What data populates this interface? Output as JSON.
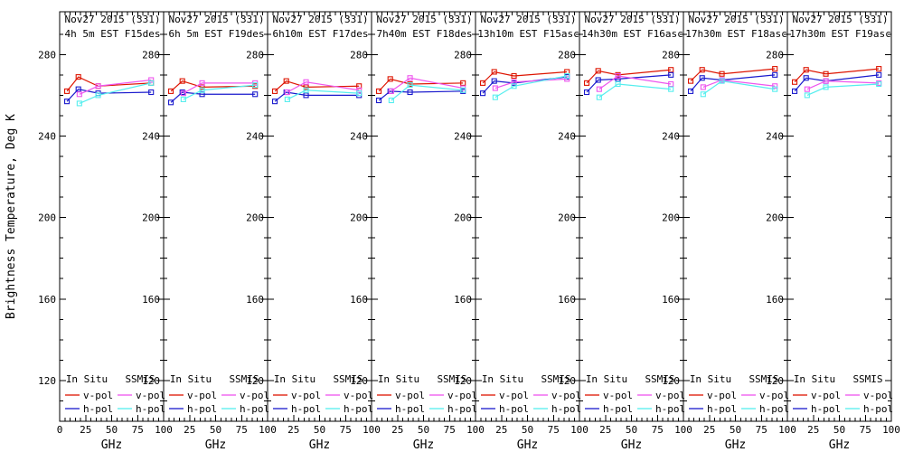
{
  "figure": {
    "ylabel": "Brightness Temperature, Deg K",
    "xlabel": "GHz",
    "legend": {
      "col1_header": "In Situ",
      "col2_header": "SSMIS",
      "vpol_label": "v-pol",
      "hpol_label": "h-pol"
    },
    "colors": {
      "in_situ_v": "#dd1400",
      "in_situ_h": "#1a1acd",
      "ssmis_v": "#ee55ee",
      "ssmis_h": "#55eeee",
      "axis": "#000000",
      "background": "#ffffff"
    }
  },
  "chart_data": {
    "type": "line",
    "xlabel": "GHz",
    "ylabel": "Brightness Temperature, Deg K",
    "xlim": [
      0,
      100
    ],
    "ylim": [
      100,
      301
    ],
    "xticks": [
      0,
      25,
      50,
      75,
      100
    ],
    "yticks": [
      120,
      160,
      200,
      240,
      280
    ],
    "x_minor_step": 5,
    "y_minor_step": 10,
    "grid": false,
    "legend_position": "bottom-inside-each-panel",
    "in_situ_freqs_ghz": [
      7,
      18,
      37,
      88
    ],
    "ssmis_freqs_ghz": [
      19,
      37,
      88
    ],
    "panels": [
      {
        "title": "Nov27 2015 (331)",
        "subtitle": "4h 5m EST F15des",
        "series": [
          {
            "name": "in-situ-v-pol",
            "color": "#dd1400",
            "x": [
              7,
              18,
              37,
              88
            ],
            "y": [
              262,
              269,
              264.5,
              266
            ]
          },
          {
            "name": "in-situ-h-pol",
            "color": "#1a1acd",
            "x": [
              7,
              18,
              37,
              88
            ],
            "y": [
              257,
              263,
              261,
              261.5
            ]
          },
          {
            "name": "ssmis-v-pol",
            "color": "#ee55ee",
            "x": [
              19,
              37,
              88
            ],
            "y": [
              260.5,
              264.5,
              267.5
            ]
          },
          {
            "name": "ssmis-h-pol",
            "color": "#55eeee",
            "x": [
              19,
              37,
              88
            ],
            "y": [
              256,
              260,
              266
            ]
          }
        ]
      },
      {
        "title": "Nov27 2015 (331)",
        "subtitle": "6h 5m EST F19des",
        "series": [
          {
            "name": "in-situ-v-pol",
            "color": "#dd1400",
            "x": [
              7,
              18,
              37,
              88
            ],
            "y": [
              262,
              267,
              264,
              264.5
            ]
          },
          {
            "name": "in-situ-h-pol",
            "color": "#1a1acd",
            "x": [
              7,
              18,
              37,
              88
            ],
            "y": [
              256.5,
              261.5,
              260.5,
              260.5
            ]
          },
          {
            "name": "ssmis-v-pol",
            "color": "#ee55ee",
            "x": [
              19,
              37,
              88
            ],
            "y": [
              261,
              266,
              266
            ]
          },
          {
            "name": "ssmis-h-pol",
            "color": "#55eeee",
            "x": [
              19,
              37,
              88
            ],
            "y": [
              258,
              262.5,
              265
            ]
          }
        ]
      },
      {
        "title": "Nov27 2015 (331)",
        "subtitle": "6h10m EST F17des",
        "series": [
          {
            "name": "in-situ-v-pol",
            "color": "#dd1400",
            "x": [
              7,
              18,
              37,
              88
            ],
            "y": [
              262,
              267,
              264,
              264.5
            ]
          },
          {
            "name": "in-situ-h-pol",
            "color": "#1a1acd",
            "x": [
              7,
              18,
              37,
              88
            ],
            "y": [
              257,
              261.5,
              260,
              260
            ]
          },
          {
            "name": "ssmis-v-pol",
            "color": "#ee55ee",
            "x": [
              19,
              37,
              88
            ],
            "y": [
              261.5,
              266.5,
              262.5
            ]
          },
          {
            "name": "ssmis-h-pol",
            "color": "#55eeee",
            "x": [
              19,
              37,
              88
            ],
            "y": [
              258,
              262.5,
              261
            ]
          }
        ]
      },
      {
        "title": "Nov27 2015 (331)",
        "subtitle": "7h40m EST F18des",
        "series": [
          {
            "name": "in-situ-v-pol",
            "color": "#dd1400",
            "x": [
              7,
              18,
              37,
              88
            ],
            "y": [
              262,
              268,
              265.5,
              266
            ]
          },
          {
            "name": "in-situ-h-pol",
            "color": "#1a1acd",
            "x": [
              7,
              18,
              37,
              88
            ],
            "y": [
              257.5,
              262,
              261.5,
              262
            ]
          },
          {
            "name": "ssmis-v-pol",
            "color": "#ee55ee",
            "x": [
              19,
              37,
              88
            ],
            "y": [
              262,
              268.5,
              263.5
            ]
          },
          {
            "name": "ssmis-h-pol",
            "color": "#55eeee",
            "x": [
              19,
              37,
              88
            ],
            "y": [
              257.5,
              265,
              262.5
            ]
          }
        ]
      },
      {
        "title": "Nov27 2015 (331)",
        "subtitle": "13h10m EST F15asc",
        "series": [
          {
            "name": "in-situ-v-pol",
            "color": "#dd1400",
            "x": [
              7,
              18,
              37,
              88
            ],
            "y": [
              266,
              271.5,
              269.5,
              271.5
            ]
          },
          {
            "name": "in-situ-h-pol",
            "color": "#1a1acd",
            "x": [
              7,
              18,
              37,
              88
            ],
            "y": [
              261,
              267,
              266,
              269
            ]
          },
          {
            "name": "ssmis-v-pol",
            "color": "#ee55ee",
            "x": [
              19,
              37,
              88
            ],
            "y": [
              263.5,
              266.5,
              268
            ]
          },
          {
            "name": "ssmis-h-pol",
            "color": "#55eeee",
            "x": [
              19,
              37,
              88
            ],
            "y": [
              259,
              264.5,
              269.5
            ]
          }
        ]
      },
      {
        "title": "Nov27 2015 (331)",
        "subtitle": "14h30m EST F16asc",
        "series": [
          {
            "name": "in-situ-v-pol",
            "color": "#dd1400",
            "x": [
              7,
              18,
              37,
              88
            ],
            "y": [
              266,
              272,
              270,
              272.5
            ]
          },
          {
            "name": "in-situ-h-pol",
            "color": "#1a1acd",
            "x": [
              7,
              18,
              37,
              88
            ],
            "y": [
              261.5,
              267.5,
              268,
              270
            ]
          },
          {
            "name": "ssmis-v-pol",
            "color": "#ee55ee",
            "x": [
              19,
              37,
              88
            ],
            "y": [
              263,
              269.5,
              265.5
            ]
          },
          {
            "name": "ssmis-h-pol",
            "color": "#55eeee",
            "x": [
              19,
              37,
              88
            ],
            "y": [
              259,
              265.5,
              263
            ]
          }
        ]
      },
      {
        "title": "Nov27 2015 (331)",
        "subtitle": "17h30m EST F18asc",
        "series": [
          {
            "name": "in-situ-v-pol",
            "color": "#dd1400",
            "x": [
              7,
              18,
              37,
              88
            ],
            "y": [
              267,
              272.5,
              270.5,
              273
            ]
          },
          {
            "name": "in-situ-h-pol",
            "color": "#1a1acd",
            "x": [
              7,
              18,
              37,
              88
            ],
            "y": [
              262,
              268.5,
              267.5,
              270
            ]
          },
          {
            "name": "ssmis-v-pol",
            "color": "#ee55ee",
            "x": [
              19,
              37,
              88
            ],
            "y": [
              264,
              267.5,
              264.5
            ]
          },
          {
            "name": "ssmis-h-pol",
            "color": "#55eeee",
            "x": [
              19,
              37,
              88
            ],
            "y": [
              260.5,
              267,
              263
            ]
          }
        ]
      },
      {
        "title": "Nov27 2015 (331)",
        "subtitle": "17h30m EST F19asc",
        "series": [
          {
            "name": "in-situ-v-pol",
            "color": "#dd1400",
            "x": [
              7,
              18,
              37,
              88
            ],
            "y": [
              266.5,
              272.5,
              270.5,
              273
            ]
          },
          {
            "name": "in-situ-h-pol",
            "color": "#1a1acd",
            "x": [
              7,
              18,
              37,
              88
            ],
            "y": [
              262,
              268.5,
              267,
              270
            ]
          },
          {
            "name": "ssmis-v-pol",
            "color": "#ee55ee",
            "x": [
              19,
              37,
              88
            ],
            "y": [
              263,
              267,
              266
            ]
          },
          {
            "name": "ssmis-h-pol",
            "color": "#55eeee",
            "x": [
              19,
              37,
              88
            ],
            "y": [
              260,
              264,
              265.5
            ]
          }
        ]
      }
    ]
  }
}
